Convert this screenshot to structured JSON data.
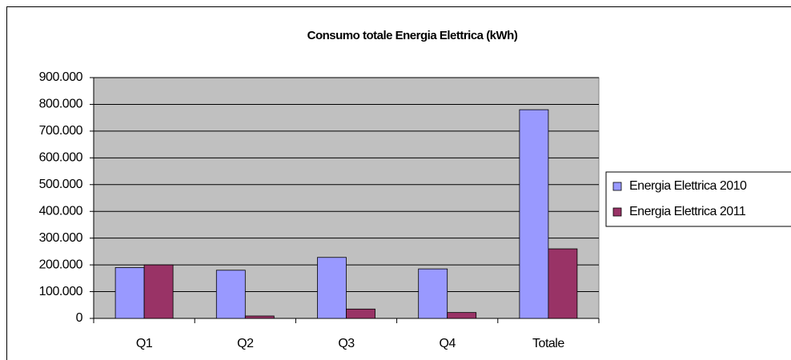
{
  "chart_data": {
    "type": "bar",
    "title": "Consumo totale Energia Elettrica (kWh)",
    "categories": [
      "Q1",
      "Q2",
      "Q3",
      "Q4",
      "Totale"
    ],
    "series": [
      {
        "name": "Energia Elettrica 2010",
        "color": "#9999ff",
        "values": [
          190000,
          180000,
          228000,
          185000,
          780000
        ]
      },
      {
        "name": "Energia Elettrica 2011",
        "color": "#993366",
        "values": [
          200000,
          9000,
          35000,
          22000,
          260000
        ]
      }
    ],
    "ylim": [
      0,
      900000
    ],
    "yticks": [
      0,
      {
        "value": 100000,
        "label": "100.000"
      },
      {
        "value": 200000,
        "label": "200.000"
      },
      {
        "value": 300000,
        "label": "300.000"
      },
      {
        "value": 400000,
        "label": "400.000"
      },
      {
        "value": 500000,
        "label": "500.000"
      },
      {
        "value": 600000,
        "label": "600.000"
      },
      {
        "value": 700000,
        "label": "700.000"
      },
      {
        "value": 800000,
        "label": "800.000"
      },
      {
        "value": 900000,
        "label": "900.000"
      }
    ],
    "grid": true,
    "legend": "right",
    "background": "#c0c0c0"
  }
}
